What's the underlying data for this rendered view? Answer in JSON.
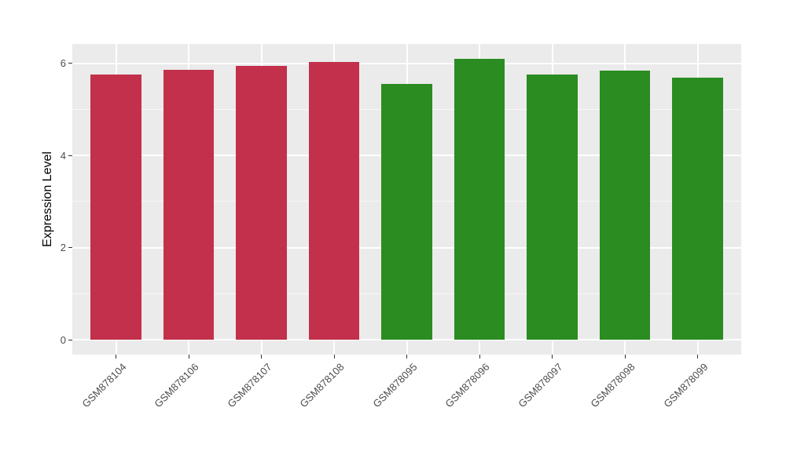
{
  "chart_data": {
    "type": "bar",
    "title": "",
    "xlabel": "",
    "ylabel": "Expression Level",
    "categories": [
      "GSM878104",
      "GSM878106",
      "GSM878107",
      "GSM878108",
      "GSM878095",
      "GSM878096",
      "GSM878097",
      "GSM878098",
      "GSM878099"
    ],
    "values": [
      5.76,
      5.87,
      5.95,
      6.04,
      5.55,
      6.1,
      5.76,
      5.84,
      5.69
    ],
    "bar_colors": [
      "#C2304B",
      "#C2304B",
      "#C2304B",
      "#C2304B",
      "#2A8C21",
      "#2A8C21",
      "#2A8C21",
      "#2A8C21",
      "#2A8C21"
    ],
    "group_colors": {
      "group_1_red": "#C2304B",
      "group_2_green": "#2A8C21"
    },
    "yticks": [
      0,
      2,
      4,
      6
    ],
    "minor_yticks": [
      1,
      3,
      5
    ],
    "ylim": [
      0,
      6.43
    ],
    "grid": "on",
    "legend_position": "none",
    "colors": {
      "panel_background": "#EBEBEB",
      "grid": "#FFFFFF",
      "axis_text": "#4D4D4D",
      "axis_title": "#000000",
      "tick_mark": "#333333",
      "figure_background": "#FFFFFF"
    }
  }
}
